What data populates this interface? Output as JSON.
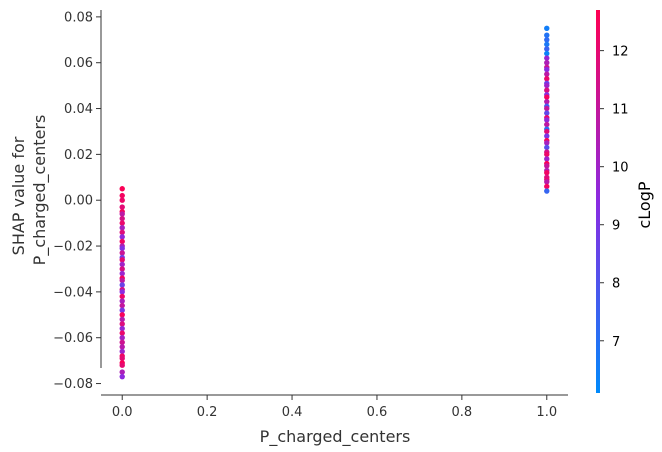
{
  "chart_data": {
    "type": "scatter",
    "title": "",
    "xlabel": "P_charged_centers",
    "ylabel_lines": [
      "SHAP value for",
      "P_charged_centers"
    ],
    "xlim": [
      -0.05,
      1.05
    ],
    "ylim": [
      -0.085,
      0.083
    ],
    "xticks": [
      0.0,
      0.2,
      0.4,
      0.6,
      0.8,
      1.0
    ],
    "xtick_labels": [
      "0.0",
      "0.2",
      "0.4",
      "0.6",
      "0.8",
      "1.0"
    ],
    "yticks": [
      -0.08,
      -0.06,
      -0.04,
      -0.02,
      0.0,
      0.02,
      0.04,
      0.06,
      0.08
    ],
    "ytick_labels": [
      "−0.08",
      "−0.06",
      "−0.04",
      "−0.02",
      "0.00",
      "0.02",
      "0.04",
      "0.06",
      "0.08"
    ],
    "grid": false,
    "colorbar": {
      "label": "cLogP",
      "range": [
        6.1,
        12.7
      ],
      "ticks": [
        7,
        8,
        9,
        10,
        11,
        12
      ],
      "tick_labels": [
        "7",
        "8",
        "9",
        "10",
        "11",
        "12"
      ],
      "color_low": "#008afb",
      "color_mid": "#8a2be2",
      "color_high": "#ff0052"
    },
    "series": [
      {
        "x": 0,
        "points": [
          [
            0.005,
            12.6
          ],
          [
            0.002,
            12.4
          ],
          [
            0.0,
            12.2
          ],
          [
            -0.003,
            11.9
          ],
          [
            -0.005,
            12.5
          ],
          [
            -0.006,
            10.8
          ],
          [
            -0.008,
            11.5
          ],
          [
            -0.01,
            12.1
          ],
          [
            -0.012,
            10.2
          ],
          [
            -0.014,
            11.8
          ],
          [
            -0.016,
            9.6
          ],
          [
            -0.018,
            12.3
          ],
          [
            -0.02,
            10.5
          ],
          [
            -0.021,
            9.2
          ],
          [
            -0.023,
            11.2
          ],
          [
            -0.025,
            8.9
          ],
          [
            -0.026,
            12.0
          ],
          [
            -0.028,
            10.0
          ],
          [
            -0.03,
            11.6
          ],
          [
            -0.032,
            9.8
          ],
          [
            -0.034,
            12.4
          ],
          [
            -0.035,
            10.9
          ],
          [
            -0.037,
            8.6
          ],
          [
            -0.039,
            11.4
          ],
          [
            -0.04,
            9.4
          ],
          [
            -0.042,
            12.2
          ],
          [
            -0.044,
            10.3
          ],
          [
            -0.046,
            11.0
          ],
          [
            -0.048,
            9.0
          ],
          [
            -0.05,
            12.5
          ],
          [
            -0.052,
            10.6
          ],
          [
            -0.054,
            11.7
          ],
          [
            -0.056,
            9.7
          ],
          [
            -0.058,
            12.1
          ],
          [
            -0.06,
            10.1
          ],
          [
            -0.062,
            11.3
          ],
          [
            -0.064,
            10.7
          ],
          [
            -0.066,
            9.9
          ],
          [
            -0.068,
            12.3
          ],
          [
            -0.069,
            11.9
          ],
          [
            -0.071,
            12.6
          ],
          [
            -0.072,
            12.0
          ],
          [
            -0.075,
            10.4
          ],
          [
            -0.077,
            9.5
          ]
        ]
      },
      {
        "x": 1,
        "points": [
          [
            0.075,
            6.5
          ],
          [
            0.072,
            6.9
          ],
          [
            0.07,
            7.2
          ],
          [
            0.068,
            6.7
          ],
          [
            0.066,
            7.5
          ],
          [
            0.064,
            6.3
          ],
          [
            0.062,
            9.8
          ],
          [
            0.06,
            10.4
          ],
          [
            0.058,
            11.2
          ],
          [
            0.057,
            9.4
          ],
          [
            0.055,
            10.8
          ],
          [
            0.053,
            12.1
          ],
          [
            0.051,
            8.8
          ],
          [
            0.05,
            10.0
          ],
          [
            0.048,
            11.6
          ],
          [
            0.046,
            9.2
          ],
          [
            0.045,
            12.4
          ],
          [
            0.043,
            10.6
          ],
          [
            0.041,
            7.8
          ],
          [
            0.04,
            11.0
          ],
          [
            0.038,
            8.4
          ],
          [
            0.036,
            12.0
          ],
          [
            0.035,
            9.6
          ],
          [
            0.033,
            10.9
          ],
          [
            0.031,
            7.1
          ],
          [
            0.03,
            11.8
          ],
          [
            0.028,
            9.0
          ],
          [
            0.026,
            12.5
          ],
          [
            0.025,
            10.2
          ],
          [
            0.023,
            8.2
          ],
          [
            0.021,
            11.4
          ],
          [
            0.02,
            12.2
          ],
          [
            0.018,
            9.9
          ],
          [
            0.016,
            12.6
          ],
          [
            0.015,
            11.1
          ],
          [
            0.013,
            10.5
          ],
          [
            0.012,
            12.3
          ],
          [
            0.01,
            11.7
          ],
          [
            0.009,
            12.0
          ],
          [
            0.008,
            10.7
          ],
          [
            0.006,
            12.4
          ],
          [
            0.004,
            7.4
          ]
        ]
      }
    ]
  }
}
